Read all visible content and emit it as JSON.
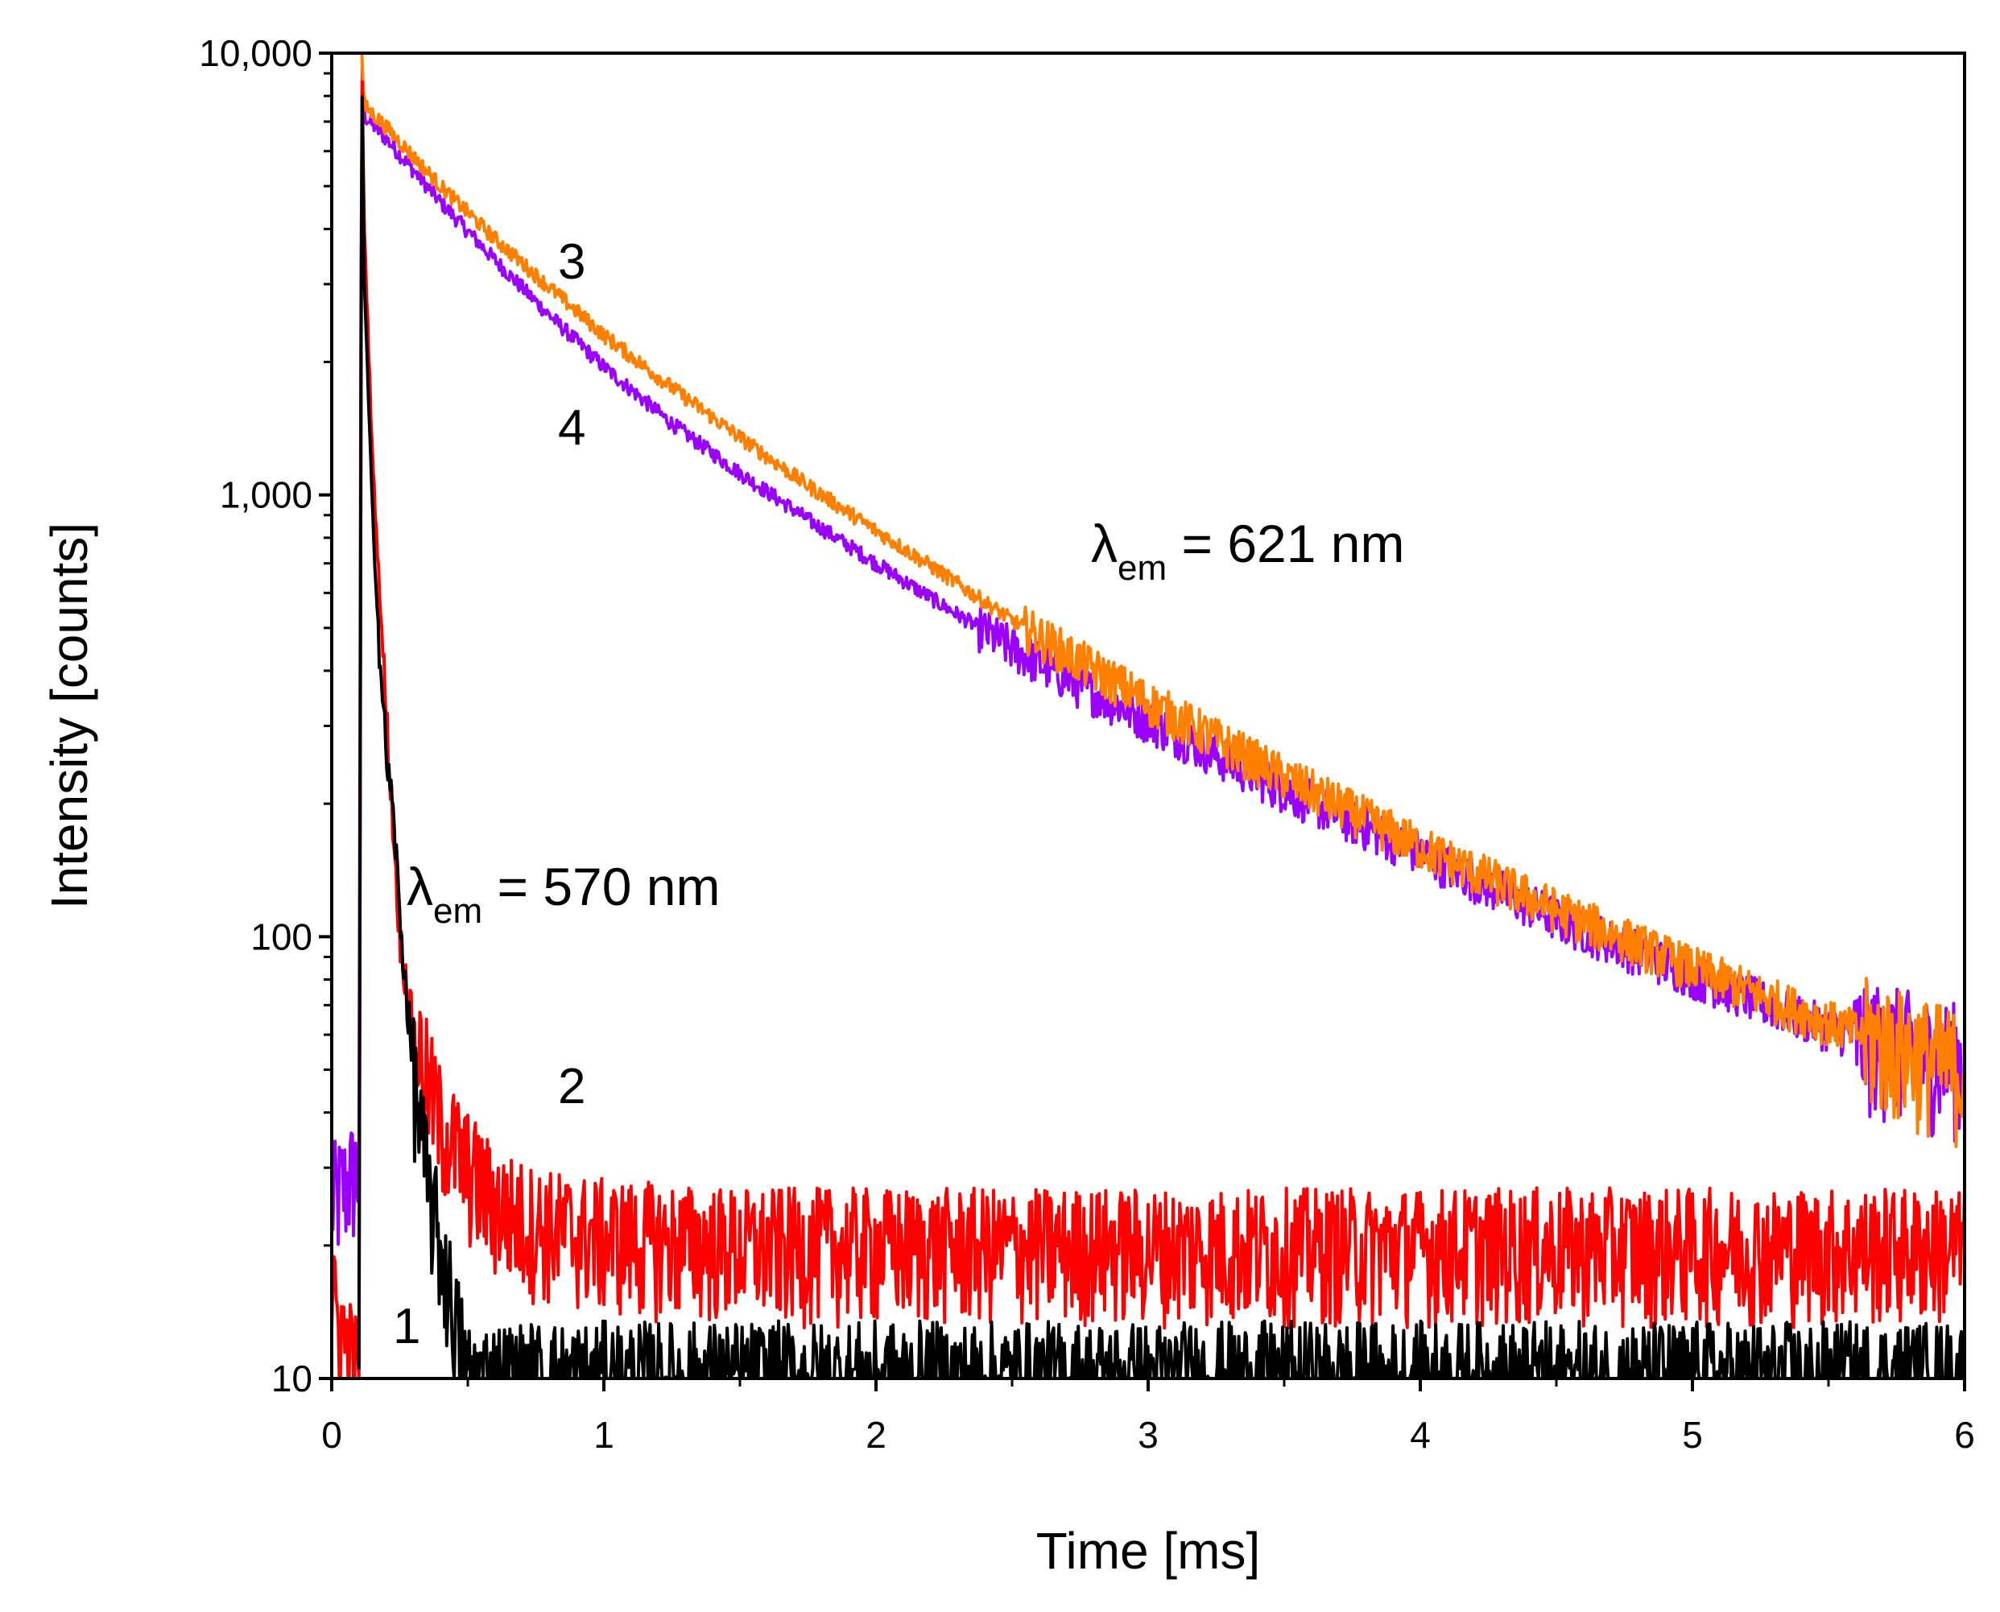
{
  "chart_data": {
    "type": "line",
    "xlabel": "Time [ms]",
    "ylabel": "Intensity [counts]",
    "x_scale": "linear",
    "y_scale": "log",
    "xlim": [
      0,
      6
    ],
    "ylim": [
      10,
      10000
    ],
    "x_ticks": [
      0,
      1,
      2,
      3,
      4,
      5,
      6
    ],
    "x_tick_labels": [
      "0",
      "1",
      "2",
      "3",
      "4",
      "5",
      "6"
    ],
    "y_ticks": [
      10,
      100,
      1000,
      10000
    ],
    "y_tick_labels": [
      "10",
      "100",
      "1,000",
      "10,000"
    ],
    "grid": false,
    "legend": "none",
    "series": [
      {
        "label": "1",
        "color": "#000000",
        "x": [
          0.1,
          0.11,
          0.12,
          0.15,
          0.18,
          0.2,
          0.23,
          0.25,
          0.3,
          0.35,
          0.4,
          0.45,
          0.5,
          0.6,
          0.8,
          1.0,
          1.5,
          2.0,
          3.0,
          4.0,
          5.0,
          6.0
        ],
        "y": [
          10,
          10000,
          3000,
          900,
          400,
          260,
          180,
          110,
          50,
          28,
          20,
          14,
          10,
          10,
          10,
          10,
          10,
          10,
          10,
          10,
          10,
          10
        ]
      },
      {
        "label": "2",
        "color": "#ff0000",
        "x": [
          0.0,
          0.1,
          0.11,
          0.12,
          0.15,
          0.18,
          0.2,
          0.23,
          0.25,
          0.3,
          0.35,
          0.4,
          0.5,
          0.6,
          0.7,
          0.8,
          1.0,
          1.5,
          2.0,
          3.0,
          4.0,
          5.0,
          6.0
        ],
        "y": [
          15,
          10,
          10000,
          4000,
          1200,
          550,
          320,
          160,
          100,
          62,
          48,
          38,
          30,
          25,
          23,
          22,
          21,
          20,
          20,
          20,
          20,
          20,
          20
        ]
      },
      {
        "label": "3",
        "color": "#ff8000",
        "x": [
          0.11,
          0.12,
          0.2,
          0.4,
          0.6,
          0.8,
          1.0,
          1.25,
          1.5,
          1.75,
          2.0,
          2.25,
          2.5,
          2.75,
          3.0,
          3.5,
          4.0,
          4.5,
          5.0,
          5.5,
          6.0
        ],
        "y": [
          10000,
          7600,
          6800,
          5000,
          3800,
          2950,
          2300,
          1750,
          1350,
          1050,
          830,
          660,
          520,
          420,
          340,
          230,
          160,
          115,
          85,
          64,
          50
        ]
      },
      {
        "label": "4",
        "color": "#9900ff",
        "x": [
          0.0,
          0.1,
          0.11,
          0.12,
          0.2,
          0.4,
          0.6,
          0.8,
          1.0,
          1.25,
          1.5,
          1.75,
          2.0,
          2.25,
          2.5,
          2.75,
          3.0,
          3.5,
          4.0,
          4.5,
          5.0,
          5.5,
          6.0
        ],
        "y": [
          25,
          30,
          10000,
          7200,
          6400,
          4600,
          3400,
          2550,
          1950,
          1450,
          1120,
          880,
          700,
          560,
          450,
          370,
          310,
          215,
          155,
          110,
          82,
          62,
          52
        ]
      }
    ],
    "annotations": [
      {
        "text_main": "λ",
        "text_sub": "em",
        "text_rest": " = 621 nm"
      },
      {
        "text_main": "λ",
        "text_sub": "em",
        "text_rest": " = 570 nm"
      }
    ]
  }
}
